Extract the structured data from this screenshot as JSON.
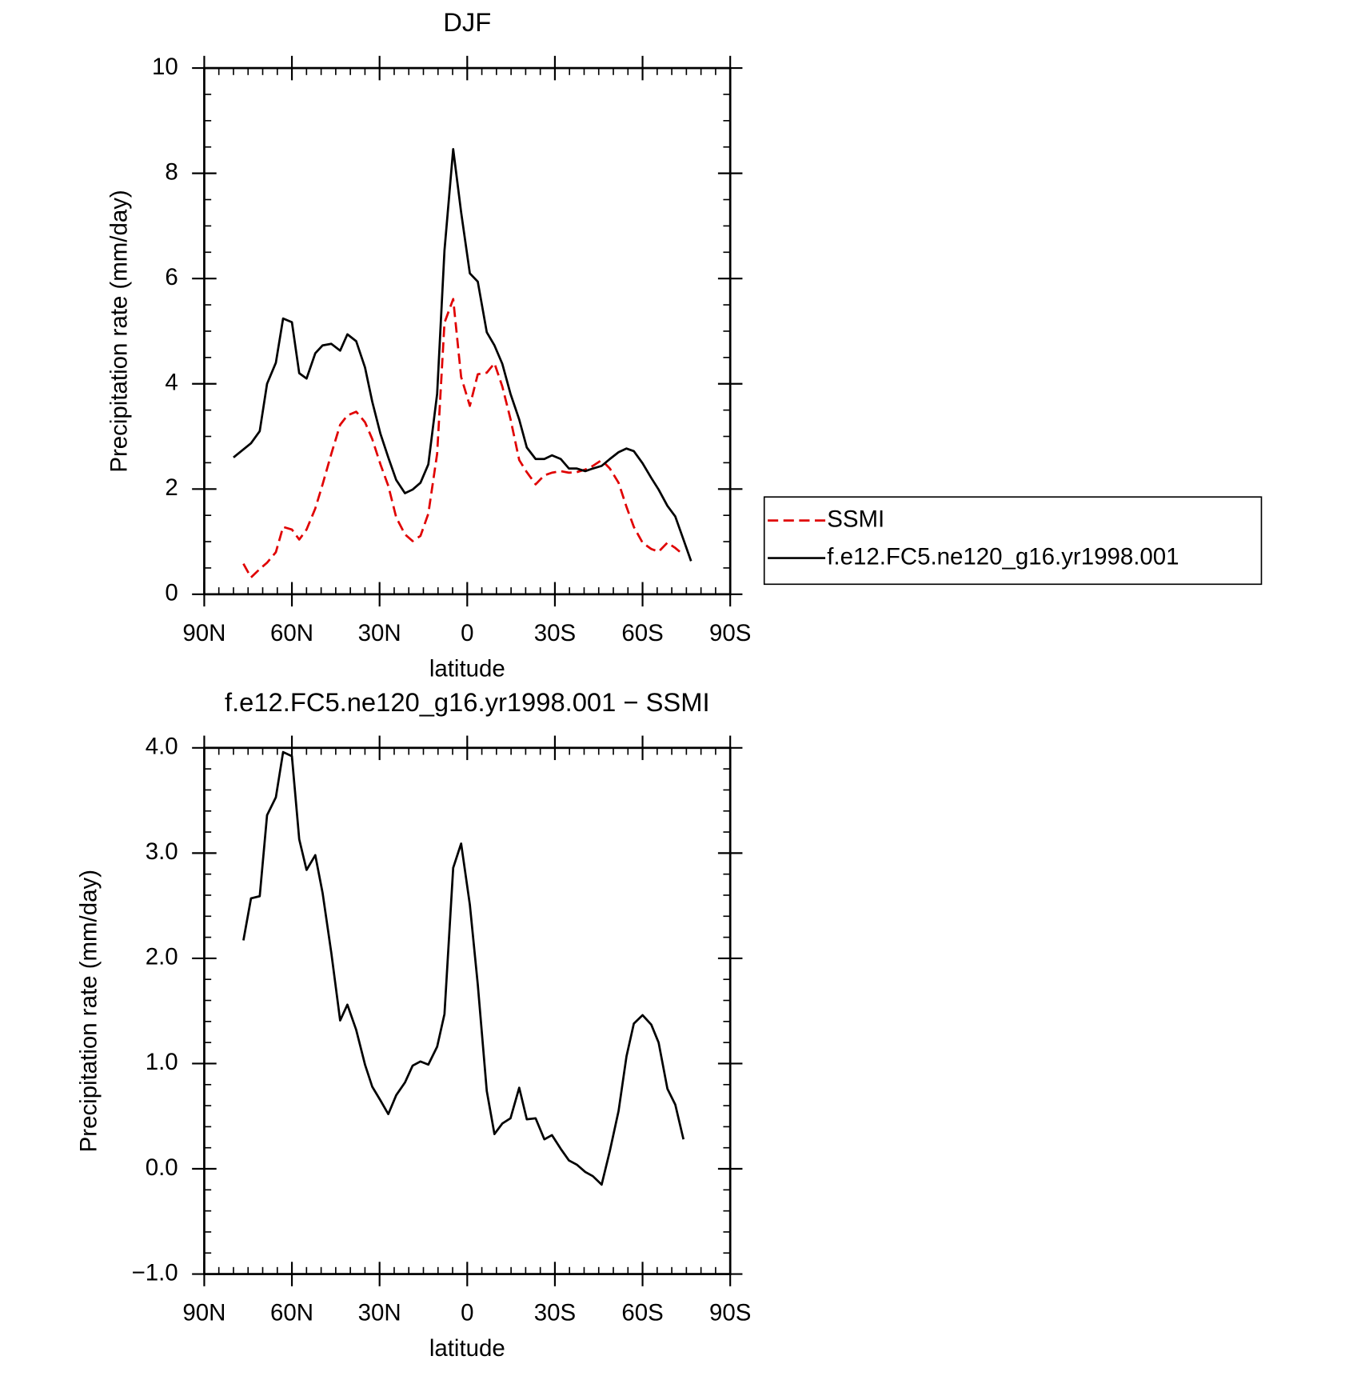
{
  "chart_data": [
    {
      "type": "line",
      "title": "DJF",
      "xlabel": "latitude",
      "ylabel": "Precipitation rate (mm/day)",
      "xlim": [
        90,
        -90
      ],
      "xticks": [
        {
          "value": 90,
          "label": "90N"
        },
        {
          "value": 60,
          "label": "60N"
        },
        {
          "value": 30,
          "label": "30N"
        },
        0,
        {
          "value": -30,
          "label": "30S"
        },
        {
          "value": -60,
          "label": "60S"
        },
        {
          "value": -90,
          "label": "90S"
        }
      ],
      "ylim": [
        0,
        10
      ],
      "yticks": [
        0,
        2,
        4,
        6,
        8,
        10
      ],
      "legend": "right",
      "series": [
        {
          "name": "SSMI",
          "color": "#e00000",
          "linestyle": "dashed",
          "x": [
            76.6,
            74,
            71,
            68.5,
            65.5,
            63,
            60,
            57.5,
            55,
            52,
            49.5,
            46.5,
            43.5,
            41,
            38,
            35,
            32.5,
            29.7,
            27,
            24.3,
            21.3,
            18.7,
            16,
            13.3,
            10.3,
            7.8,
            4.8,
            2.1,
            -0.9,
            -3.6,
            -6.7,
            -9.3,
            -12,
            -14.8,
            -17.8,
            -20.4,
            -23.4,
            -26.4,
            -29,
            -32,
            -34.8,
            -37.5,
            -40.4,
            -43,
            -46,
            -48.8,
            -51.8,
            -54.5,
            -57,
            -60,
            -63,
            -65.5,
            -68.5,
            -71.2,
            -74
          ],
          "values": [
            0.58,
            0.32,
            0.48,
            0.6,
            0.8,
            1.28,
            1.23,
            1.04,
            1.23,
            1.63,
            2.09,
            2.67,
            3.22,
            3.4,
            3.47,
            3.27,
            2.95,
            2.47,
            2.06,
            1.46,
            1.14,
            1.01,
            1.11,
            1.53,
            2.67,
            5.16,
            5.61,
            4.13,
            3.58,
            4.18,
            4.21,
            4.39,
            3.95,
            3.33,
            2.55,
            2.32,
            2.09,
            2.26,
            2.31,
            2.34,
            2.31,
            2.32,
            2.37,
            2.44,
            2.55,
            2.39,
            2.12,
            1.66,
            1.28,
            0.98,
            0.86,
            0.81,
            0.98,
            0.88,
            0.75
          ]
        },
        {
          "name": "f.e12.FC5.ne120_g16.yr1998.001",
          "color": "#000000",
          "linestyle": "solid",
          "x": [
            80,
            74,
            71,
            68.5,
            65.5,
            63,
            60,
            57.5,
            55,
            52,
            49.5,
            46.5,
            43.5,
            41,
            38,
            35,
            32.5,
            29.7,
            27,
            24.3,
            21.3,
            18.7,
            16,
            13.3,
            10.3,
            7.8,
            4.8,
            2.1,
            -0.9,
            -3.6,
            -6.7,
            -9.3,
            -12,
            -14.8,
            -17.8,
            -20.4,
            -23.4,
            -26.4,
            -29,
            -32,
            -34.8,
            -37.5,
            -40.4,
            -43,
            -46,
            -48.8,
            -51.8,
            -54.5,
            -57,
            -60,
            -63,
            -65.5,
            -68.5,
            -71.2,
            -74,
            -76.6
          ],
          "values": [
            2.6,
            2.87,
            3.1,
            4.0,
            4.4,
            5.24,
            5.17,
            4.2,
            4.1,
            4.58,
            4.73,
            4.76,
            4.63,
            4.94,
            4.81,
            4.31,
            3.66,
            3.05,
            2.6,
            2.17,
            1.92,
            1.99,
            2.12,
            2.47,
            3.81,
            6.53,
            8.46,
            7.26,
            6.1,
            5.94,
            4.98,
            4.73,
            4.38,
            3.81,
            3.32,
            2.79,
            2.57,
            2.57,
            2.64,
            2.57,
            2.39,
            2.39,
            2.34,
            2.39,
            2.44,
            2.57,
            2.7,
            2.77,
            2.72,
            2.49,
            2.21,
            1.99,
            1.68,
            1.48,
            1.04,
            0.63
          ]
        }
      ]
    },
    {
      "type": "line",
      "title": "f.e12.FC5.ne120_g16.yr1998.001 − SSMI",
      "xlabel": "latitude",
      "ylabel": "Precipitation rate (mm/day)",
      "xlim": [
        90,
        -90
      ],
      "xticks": [
        {
          "value": 90,
          "label": "90N"
        },
        {
          "value": 60,
          "label": "60N"
        },
        {
          "value": 30,
          "label": "30N"
        },
        0,
        {
          "value": -30,
          "label": "30S"
        },
        {
          "value": -60,
          "label": "60S"
        },
        {
          "value": -90,
          "label": "90S"
        }
      ],
      "ylim": [
        -1,
        4
      ],
      "yticks": [
        {
          "value": -1,
          "label": "−1.0"
        },
        {
          "value": 0,
          "label": "0.0"
        },
        {
          "value": 1,
          "label": "1.0"
        },
        {
          "value": 2,
          "label": "2.0"
        },
        {
          "value": 3,
          "label": "3.0"
        },
        {
          "value": 4,
          "label": "4.0"
        }
      ],
      "series": [
        {
          "color": "#000000",
          "linestyle": "solid",
          "x": [
            76.6,
            74,
            71,
            68.5,
            65.5,
            63,
            60,
            57.5,
            55,
            52,
            49.5,
            46.5,
            43.5,
            41,
            38,
            35,
            32.5,
            29.7,
            27,
            24.3,
            21.3,
            18.7,
            16,
            13.3,
            10.3,
            7.8,
            4.8,
            2.1,
            -0.9,
            -3.6,
            -6.7,
            -9.3,
            -12,
            -14.8,
            -17.8,
            -20.4,
            -23.4,
            -26.4,
            -29,
            -32,
            -34.8,
            -37.5,
            -40.4,
            -43,
            -46,
            -48.8,
            -51.8,
            -54.5,
            -57,
            -60,
            -63,
            -65.5,
            -68.5,
            -71.2,
            -74
          ],
          "values": [
            2.17,
            2.57,
            2.59,
            3.36,
            3.53,
            3.96,
            3.92,
            3.13,
            2.84,
            2.98,
            2.62,
            2.05,
            1.41,
            1.56,
            1.32,
            0.99,
            0.78,
            0.65,
            0.52,
            0.7,
            0.82,
            0.98,
            1.02,
            0.99,
            1.16,
            1.47,
            2.86,
            3.09,
            2.51,
            1.75,
            0.74,
            0.33,
            0.43,
            0.48,
            0.77,
            0.47,
            0.48,
            0.28,
            0.32,
            0.19,
            0.08,
            0.04,
            -0.03,
            -0.07,
            -0.15,
            0.17,
            0.55,
            1.07,
            1.38,
            1.46,
            1.37,
            1.2,
            0.76,
            0.61,
            0.28
          ]
        }
      ]
    }
  ]
}
